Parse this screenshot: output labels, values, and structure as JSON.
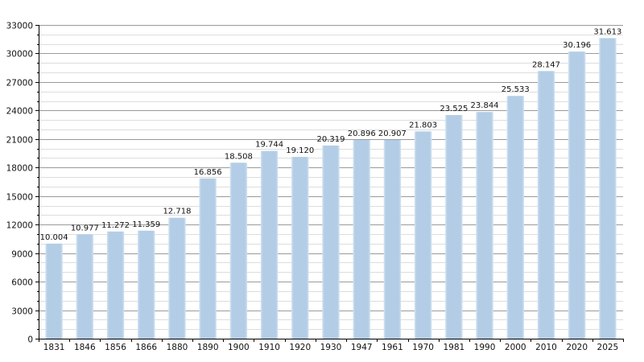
{
  "chart_data": {
    "type": "bar",
    "categories": [
      "1831",
      "1846",
      "1856",
      "1866",
      "1880",
      "1890",
      "1900",
      "1910",
      "1920",
      "1930",
      "1947",
      "1961",
      "1970",
      "1981",
      "1990",
      "2000",
      "2010",
      "2020",
      "2025"
    ],
    "values": [
      10004,
      10977,
      11272,
      11359,
      12718,
      16856,
      18508,
      19744,
      19120,
      20319,
      20896,
      20907,
      21803,
      23525,
      23844,
      25533,
      28147,
      30196,
      31613
    ],
    "value_labels": [
      "10.004",
      "10.977",
      "11.272",
      "11.359",
      "12.718",
      "16.856",
      "18.508",
      "19.744",
      "19.120",
      "20.319",
      "20.896",
      "20.907",
      "21.803",
      "23.525",
      "23.844",
      "25.533",
      "28.147",
      "30.196",
      "31.613"
    ],
    "ylim": [
      0,
      33000
    ],
    "yticks": [
      0,
      3000,
      6000,
      9000,
      12000,
      15000,
      18000,
      21000,
      24000,
      27000,
      30000,
      33000
    ],
    "ytick_labels": [
      "0",
      "3000",
      "6000",
      "9000",
      "12000",
      "15000",
      "18000",
      "21000",
      "24000",
      "27000",
      "30000",
      "33000"
    ],
    "grid": true,
    "title": "",
    "xlabel": "",
    "ylabel": "",
    "colors": {
      "bar": "#b3cde6",
      "bar_edge": "#d4e3f1",
      "grid_major": "#9a9a9a",
      "grid_minor": "#dddddd",
      "axis": "#000000"
    }
  }
}
